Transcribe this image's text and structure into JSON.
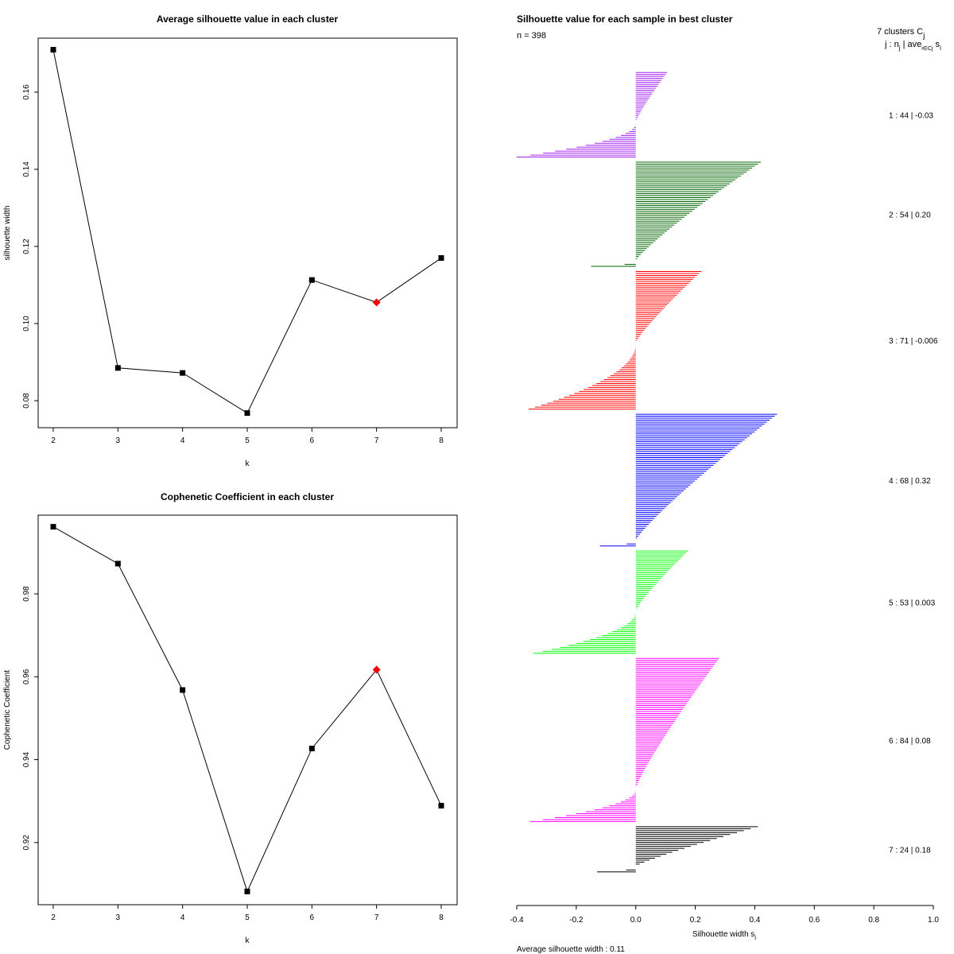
{
  "colors": {
    "line": "#000000",
    "highlight": "#ff0000",
    "cluster_colors": [
      "#a020f0",
      "#006400",
      "#ff0000",
      "#0000ff",
      "#00ff00",
      "#ff00ff",
      "#000000"
    ]
  },
  "chart_data": [
    {
      "type": "line",
      "title": "Average silhouette value in each cluster",
      "xlabel": "k",
      "ylabel": "silhouette width",
      "x": [
        2,
        3,
        4,
        5,
        6,
        7,
        8
      ],
      "values": [
        0.171,
        0.0885,
        0.0872,
        0.0768,
        0.1113,
        0.1055,
        0.117
      ],
      "highlight_k": 7,
      "xlim": [
        2,
        8
      ],
      "ylim": [
        0.073,
        0.174
      ],
      "xticks": [
        "2",
        "3",
        "4",
        "5",
        "6",
        "7",
        "8"
      ],
      "yticks": [
        0.08,
        0.1,
        0.12,
        0.14,
        0.16
      ],
      "ytick_labels": [
        "0.08",
        "0.10",
        "0.12",
        "0.14",
        "0.16"
      ]
    },
    {
      "type": "line",
      "title": "Cophenetic Coefficient in each cluster",
      "xlabel": "k",
      "ylabel": "Cophenetic Coefficient",
      "x": [
        2,
        3,
        4,
        5,
        6,
        7,
        8
      ],
      "values": [
        0.9962,
        0.9873,
        0.9568,
        0.9082,
        0.9427,
        0.9617,
        0.9289
      ],
      "highlight_k": 7,
      "xlim": [
        2,
        8
      ],
      "ylim": [
        0.905,
        0.999
      ],
      "xticks": [
        "2",
        "3",
        "4",
        "5",
        "6",
        "7",
        "8"
      ],
      "yticks": [
        0.92,
        0.94,
        0.96,
        0.98
      ],
      "ytick_labels": [
        "0.92",
        "0.94",
        "0.96",
        "0.98"
      ]
    },
    {
      "type": "bar",
      "orientation": "horizontal",
      "title": "Silhouette value for each sample in best cluster",
      "n_label": "n = 398",
      "header_line1": "7 clusters  C",
      "header_sub_j": "j",
      "header_line2": "j :  n",
      "header_line2_rest": " | ave",
      "header_sub_ij": "i∈Cj",
      "header_s": " s",
      "header_sub_i": "i",
      "xlabel": "Silhouette width s",
      "xlabel_sub": "i",
      "xlim": [
        -0.4,
        1.0
      ],
      "xticks": [
        -0.4,
        -0.2,
        0.0,
        0.2,
        0.4,
        0.6,
        0.8,
        1.0
      ],
      "xtick_labels": [
        "-0.4",
        "-0.2",
        "0.0",
        "0.2",
        "0.4",
        "0.6",
        "0.8",
        "1.0"
      ],
      "average_label": "Average silhouette width :  0.11",
      "clusters": [
        {
          "label": "1 :  44  |  -0.03",
          "n": 44,
          "pos_max": 0.105,
          "neg_min": -0.4,
          "neg_count": 18
        },
        {
          "label": "2 :  54  |  0.20",
          "n": 54,
          "pos_max": 0.42,
          "neg_min": -0.15,
          "neg_count": 3
        },
        {
          "label": "3 :  71  |  -0.006",
          "n": 71,
          "pos_max": 0.22,
          "neg_min": -0.36,
          "neg_count": 34
        },
        {
          "label": "4 :  68  |  0.32",
          "n": 68,
          "pos_max": 0.475,
          "neg_min": -0.12,
          "neg_count": 3
        },
        {
          "label": "5 :  53  |  0.003",
          "n": 53,
          "pos_max": 0.175,
          "neg_min": -0.345,
          "neg_count": 22
        },
        {
          "label": "6 :  84  |  0.08",
          "n": 84,
          "pos_max": 0.28,
          "neg_min": -0.355,
          "neg_count": 17
        },
        {
          "label": "7 :  24  |  0.18",
          "n": 24,
          "pos_max": 0.41,
          "neg_min": -0.13,
          "neg_count": 3
        }
      ]
    }
  ]
}
